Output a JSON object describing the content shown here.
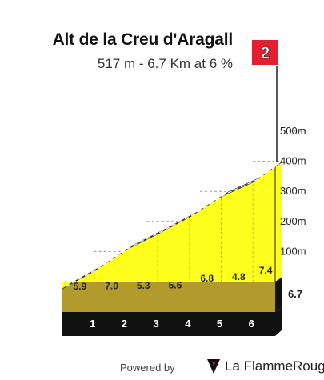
{
  "chart_data": {
    "type": "area",
    "title": "Alt de la Creu d'Aragall",
    "subtitle": "517 m - 6.7 Km at 6 %",
    "km_markers": [
      "1",
      "2",
      "3",
      "4",
      "5",
      "6"
    ],
    "total_distance_label": "6.7",
    "segment_gradients": [
      "5.9",
      "7.0",
      "5.3",
      "5.6",
      "6.8",
      "4.8",
      "7.4"
    ],
    "y_ticks": [
      "100m",
      "200m",
      "300m",
      "400m",
      "500m"
    ],
    "ylim": [
      0,
      500
    ],
    "xlim": [
      0,
      6.7
    ],
    "x_km": [
      0,
      1,
      2,
      3,
      4,
      5,
      6,
      6.7
    ],
    "elevation_m": [
      0,
      59,
      129,
      182,
      238,
      306,
      354,
      406
    ],
    "segment_colors": [
      "#2e6aa0",
      "#d8202f",
      "#2e6aa0",
      "#d8202f",
      "#2e6aa0",
      "#2e6aa0",
      "#d8202f"
    ],
    "category_badge": "2",
    "colors": {
      "fill": "#ffff1e",
      "base": "#b39a2c",
      "axis_band": "#111111",
      "badge": "#e5202e"
    }
  },
  "footer": {
    "powered_by": "Powered by",
    "brand": "La FlammeRouge"
  }
}
